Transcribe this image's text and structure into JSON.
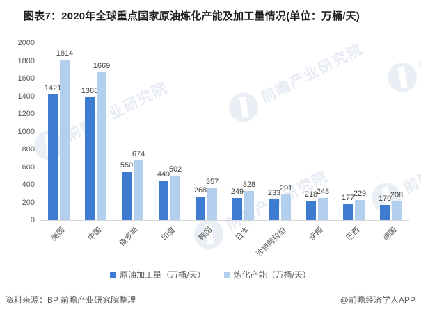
{
  "title": "图表7：2020年全球重点国家原油炼化产能及加工量情况(单位：万桶/天)",
  "chart_data": {
    "type": "bar",
    "categories": [
      "美国",
      "中国",
      "俄罗斯",
      "印度",
      "韩国",
      "日本",
      "沙特阿拉伯",
      "伊朗",
      "巴西",
      "德国"
    ],
    "series": [
      {
        "name": "原油加工量（万桶/天）",
        "color": "#3d7cd0",
        "values": [
          1421,
          1386,
          550,
          449,
          268,
          249,
          233,
          218,
          177,
          170
        ]
      },
      {
        "name": "炼化产能（万桶/天）",
        "color": "#b3cfee",
        "values": [
          1814,
          1669,
          674,
          502,
          357,
          328,
          291,
          248,
          229,
          208
        ]
      }
    ],
    "ylim": [
      0,
      2000
    ],
    "yticks": [
      0,
      200,
      400,
      600,
      800,
      1000,
      1200,
      1400,
      1600,
      1800,
      2000
    ],
    "grid": false,
    "legend_position": "bottom",
    "value_labels": true
  },
  "watermark": {
    "text": "前瞻产业研究院"
  },
  "footer": {
    "source": "资料来源：BP 前瞻产业研究院整理",
    "credit": "@前瞻经济学人APP"
  }
}
